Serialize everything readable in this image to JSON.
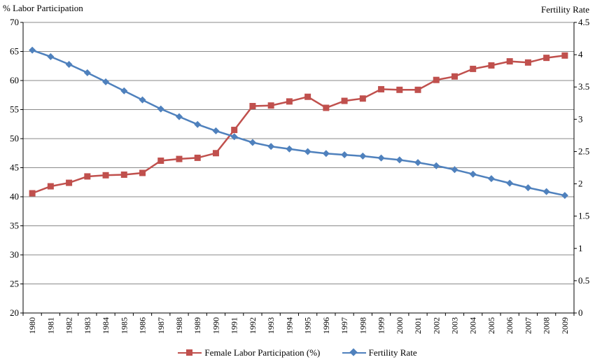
{
  "colors": {
    "female": "#c0504d",
    "fertility": "#4f81bd",
    "grid": "#8a8a8a",
    "axis": "#000000"
  },
  "chart_data": {
    "type": "line",
    "title": "",
    "left_axis_title": "% Labor Participation",
    "right_axis_title": "Fertility Rate",
    "x": [
      "1980",
      "1981",
      "1982",
      "1983",
      "1984",
      "1985",
      "1986",
      "1987",
      "1988",
      "1989",
      "1990",
      "1991",
      "1992",
      "1993",
      "1994",
      "1995",
      "1996",
      "1997",
      "1998",
      "1999",
      "2000",
      "2001",
      "2002",
      "2003",
      "2004",
      "2005",
      "2006",
      "2007",
      "2008",
      "2009"
    ],
    "left_ylim": [
      20,
      70
    ],
    "left_ticks": [
      20,
      25,
      30,
      35,
      40,
      45,
      50,
      55,
      60,
      65,
      70
    ],
    "right_ylim": [
      0,
      4.5
    ],
    "right_ticks": [
      0,
      0.5,
      1,
      1.5,
      2,
      2.5,
      3,
      3.5,
      4,
      4.5
    ],
    "gridlines": true,
    "legend_position": "bottom",
    "series": [
      {
        "name": "Female Labor Participation (%)",
        "axis": "left",
        "marker": "square",
        "values": [
          40.6,
          41.8,
          42.4,
          43.5,
          43.7,
          43.8,
          44.1,
          46.2,
          46.5,
          46.7,
          47.5,
          51.5,
          55.6,
          55.7,
          56.4,
          57.2,
          55.3,
          56.5,
          56.9,
          58.5,
          58.4,
          58.4,
          60.1,
          60.7,
          62.0,
          62.6,
          63.3,
          63.1,
          63.9,
          64.3
        ]
      },
      {
        "name": "Fertility Rate",
        "axis": "right",
        "marker": "diamond",
        "values": [
          4.07,
          3.97,
          3.85,
          3.72,
          3.58,
          3.44,
          3.3,
          3.16,
          3.04,
          2.92,
          2.82,
          2.73,
          2.64,
          2.58,
          2.54,
          2.5,
          2.47,
          2.45,
          2.43,
          2.4,
          2.37,
          2.33,
          2.28,
          2.22,
          2.15,
          2.08,
          2.01,
          1.94,
          1.88,
          1.82
        ]
      }
    ]
  }
}
